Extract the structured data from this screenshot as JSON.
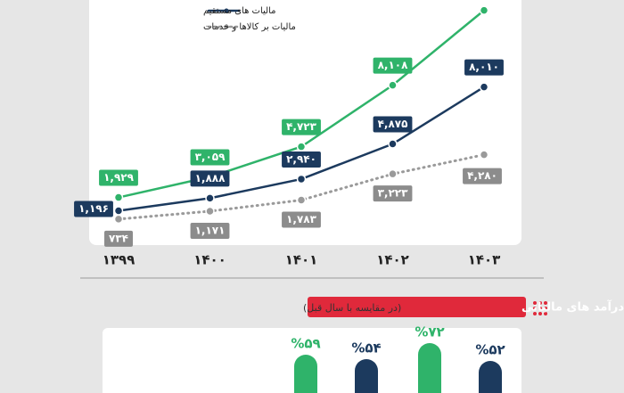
{
  "chart_data": [
    {
      "type": "line",
      "categories": [
        "۱۳۹۹",
        "۱۴۰۰",
        "۱۴۰۱",
        "۱۴۰۲",
        "۱۴۰۳"
      ],
      "series": [
        {
          "color": "#2fb36a",
          "values": [
            1929,
            3059,
            4723,
            8108,
            12230
          ],
          "value_labels": [
            "۱,۹۲۹",
            "۳,۰۵۹",
            "۴,۷۲۳",
            "۸,۱۰۸",
            null
          ]
        },
        {
          "name": "مالیات های مستقیم",
          "color": "#1c3a5e",
          "values": [
            1196,
            1888,
            2940,
            4875,
            8010
          ],
          "value_labels": [
            "۱,۱۹۶",
            "۱,۸۸۸",
            "۲,۹۴۰",
            "۴,۸۷۵",
            "۸,۰۱۰"
          ]
        },
        {
          "name": "مالیات بر کالاها و خدمات",
          "color": "#9a9a9a",
          "dashed": true,
          "values": [
            734,
            1171,
            1783,
            3223,
            4280
          ],
          "value_labels": [
            "۷۳۴",
            "۱,۱۷۱",
            "۱,۷۸۳",
            "۳,۲۲۳",
            "۴,۲۸۰"
          ]
        }
      ],
      "ylim": [
        -350,
        12800
      ]
    },
    {
      "type": "bar",
      "title": "درصد رشد سالیانه درآمد های مالیاتی",
      "subtitle": "(در مقایسه با سال قبل)",
      "categories": [
        null,
        null
      ],
      "series": [
        {
          "color": "#2fb36a",
          "values": [
            59,
            72
          ],
          "value_labels": [
            "%۵۹",
            "%۷۲"
          ]
        },
        {
          "color": "#1c3a5e",
          "values": [
            54,
            52
          ],
          "value_labels": [
            "%۵۴",
            "%۵۲"
          ]
        }
      ],
      "ylim": [
        0,
        80
      ]
    }
  ]
}
